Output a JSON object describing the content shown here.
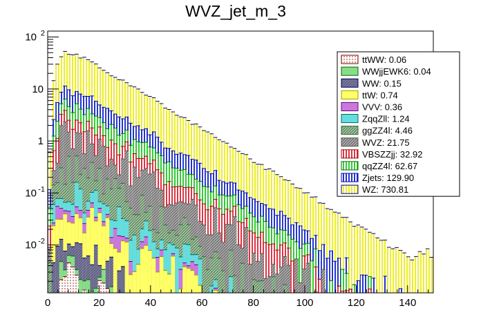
{
  "chart_data": {
    "type": "bar",
    "title": "WVZ_jet_m_3",
    "xlabel": "",
    "ylabel": "",
    "stacked": true,
    "y_scale": "log",
    "xlim": [
      0,
      150
    ],
    "ylim": [
      0.0012,
      130
    ],
    "bin_width": 1.5,
    "grid": false,
    "legend_position": "top-right",
    "x_ticks": [
      0,
      20,
      40,
      60,
      80,
      100,
      120,
      140
    ],
    "y_ticks": [
      {
        "value": 0.01,
        "base": "10",
        "exp": "-2"
      },
      {
        "value": 0.1,
        "base": "10",
        "exp": "-1"
      },
      {
        "value": 1,
        "base": "1",
        "exp": ""
      },
      {
        "value": 10,
        "base": "10",
        "exp": ""
      },
      {
        "value": 100,
        "base": "10",
        "exp": "2"
      }
    ],
    "series": [
      {
        "name": "ttWW",
        "yield": "0.06",
        "color": "#cc8888",
        "stroke": "#7a0000",
        "pattern": "dots",
        "peak": 0.002
      },
      {
        "name": "WWjjEWK6",
        "yield": "0.04",
        "color": "#88dd88",
        "stroke": "#006600",
        "pattern": "solid",
        "peak": 0.0015
      },
      {
        "name": "WW",
        "yield": "0.15",
        "color": "#7777aa",
        "stroke": "#000055",
        "pattern": "hatch",
        "peak": 0.006
      },
      {
        "name": "ttW",
        "yield": "0.74",
        "color": "#ffff66",
        "stroke": "#999900",
        "pattern": "solid",
        "peak": 0.03
      },
      {
        "name": "VVV",
        "yield": "0.36",
        "color": "#cc77dd",
        "stroke": "#660077",
        "pattern": "solid",
        "peak": 0.014
      },
      {
        "name": "ZqqZll",
        "yield": "1.24",
        "color": "#66dddd",
        "stroke": "#006666",
        "pattern": "solid",
        "peak": 0.05
      },
      {
        "name": "ggZZ4l",
        "yield": "4.46",
        "color": "#99cc99",
        "stroke": "#336633",
        "pattern": "hatch",
        "peak": 0.18
      },
      {
        "name": "WVZ",
        "yield": "21.75",
        "color": "#aaaaaa",
        "stroke": "#555555",
        "pattern": "hatch",
        "peak": 0.85
      },
      {
        "name": "VBSZZjj",
        "yield": "32.92",
        "color": "#dd3344",
        "stroke": "#990000",
        "pattern": "vlines",
        "peak": 1.25
      },
      {
        "name": "qqZZ4l",
        "yield": "62.67",
        "color": "#33cc33",
        "stroke": "#006600",
        "pattern": "vlines",
        "peak": 2.3
      },
      {
        "name": "Zjets",
        "yield": "129.90",
        "color": "#2233cc",
        "stroke": "#0000aa",
        "pattern": "vlines",
        "peak": 4.9
      },
      {
        "name": "WZ",
        "yield": "730.81",
        "color": "#eeee22",
        "stroke": "#000088",
        "pattern": "vlines",
        "peak": 40
      }
    ]
  }
}
